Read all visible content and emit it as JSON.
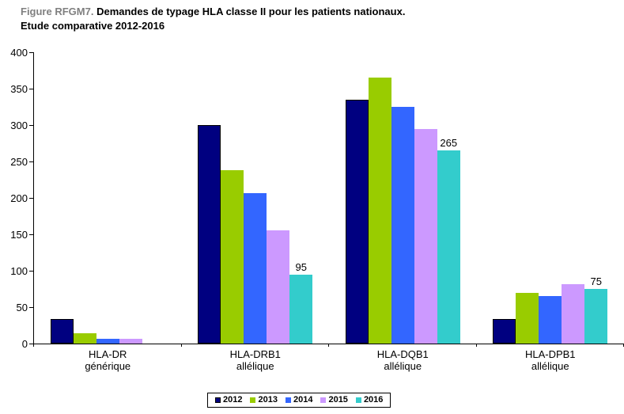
{
  "title": {
    "prefix": "Figure RFGM7.",
    "main": "Demandes de typage HLA classe II pour les patients nationaux.",
    "subtitle": "Etude comparative 2012-2016"
  },
  "chart_data": {
    "type": "bar",
    "title": "Figure RFGM7. Demandes de typage HLA classe II pour les patients nationaux. Etude comparative 2012-2016",
    "categories": [
      "HLA-DR générique",
      "HLA-DRB1 allélique",
      "HLA-DQB1 allélique",
      "HLA-DPB1 allélique"
    ],
    "category_lines": [
      [
        "HLA-DR",
        "générique"
      ],
      [
        "HLA-DRB1",
        "allélique"
      ],
      [
        "HLA-DQB1",
        "allélique"
      ],
      [
        "HLA-DPB1",
        "allélique"
      ]
    ],
    "series": [
      {
        "name": "2012",
        "color": "#000080",
        "bordered": true,
        "values": [
          34,
          300,
          335,
          34
        ]
      },
      {
        "name": "2013",
        "color": "#99CC00",
        "values": [
          14,
          238,
          365,
          70
        ]
      },
      {
        "name": "2014",
        "color": "#3366FF",
        "values": [
          6,
          207,
          325,
          65
        ]
      },
      {
        "name": "2015",
        "color": "#CC99FF",
        "values": [
          7,
          155,
          295,
          81
        ]
      },
      {
        "name": "2016",
        "color": "#33CCCC",
        "values": [
          0,
          95,
          265,
          75
        ],
        "data_labels": [
          "",
          "95",
          "265",
          "75"
        ]
      }
    ],
    "xlabel": "",
    "ylabel": "",
    "ylim": [
      0,
      400
    ],
    "yticks": [
      0,
      50,
      100,
      150,
      200,
      250,
      300,
      350,
      400
    ],
    "grid": false,
    "legend_position": "bottom",
    "axis_color": "#000000",
    "title_prefix_color": "#808080"
  }
}
